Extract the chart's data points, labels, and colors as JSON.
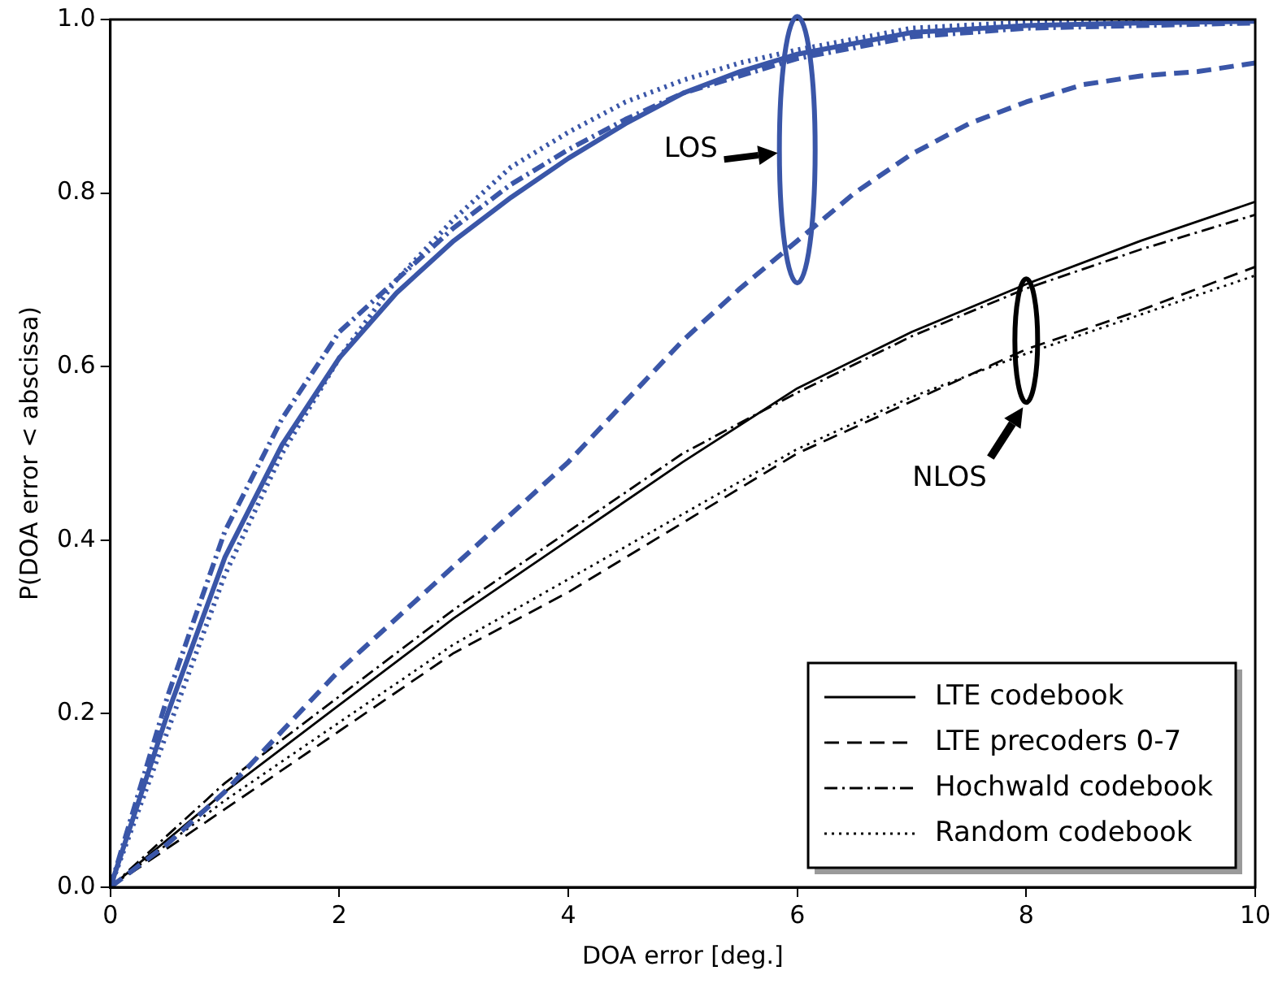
{
  "chart_data": {
    "type": "line",
    "xlabel": "DOA error [deg.]",
    "ylabel": "P(DOA error < abscissa)",
    "xlim": [
      0,
      10
    ],
    "xticks": [
      0,
      2,
      4,
      6,
      8,
      10
    ],
    "ylim": [
      0,
      1
    ],
    "yticks": [
      {
        "value": 0,
        "label": "0.0"
      },
      0.2,
      0.4,
      0.6,
      0.8,
      {
        "value": 1,
        "label": "1.0"
      }
    ],
    "grid": false,
    "legend": "bottom right",
    "marker": "none",
    "series": [
      {
        "color": "#3a56a8",
        "line_style": "solid",
        "x": [
          0,
          0.5,
          1,
          1.5,
          2,
          2.5,
          3,
          3.5,
          4,
          4.5,
          5,
          5.5,
          6,
          7,
          8,
          9,
          10
        ],
        "values": [
          0,
          0.2,
          0.38,
          0.51,
          0.61,
          0.685,
          0.745,
          0.795,
          0.84,
          0.88,
          0.915,
          0.94,
          0.96,
          0.985,
          0.993,
          0.996,
          0.998
        ]
      },
      {
        "color": "#3a56a8",
        "line_style": "dashed",
        "x": [
          0,
          0.5,
          1,
          1.5,
          2,
          2.5,
          3,
          3.5,
          4,
          4.5,
          5,
          5.5,
          6,
          6.5,
          7,
          7.5,
          8,
          8.5,
          9,
          9.5,
          10
        ],
        "values": [
          0,
          0.05,
          0.11,
          0.18,
          0.25,
          0.31,
          0.37,
          0.43,
          0.49,
          0.56,
          0.63,
          0.69,
          0.745,
          0.8,
          0.845,
          0.88,
          0.905,
          0.925,
          0.935,
          0.94,
          0.95
        ]
      },
      {
        "color": "#3a56a8",
        "line_style": "dashdot",
        "x": [
          0,
          0.5,
          1,
          1.5,
          2,
          2.5,
          3,
          3.5,
          4,
          4.5,
          5,
          6,
          7,
          8,
          10
        ],
        "values": [
          0,
          0.22,
          0.41,
          0.54,
          0.64,
          0.7,
          0.76,
          0.81,
          0.85,
          0.885,
          0.915,
          0.955,
          0.98,
          0.99,
          0.996
        ]
      },
      {
        "color": "#3a56a8",
        "line_style": "dotted",
        "x": [
          0,
          0.5,
          1,
          1.5,
          2,
          2.5,
          3,
          3.5,
          4,
          4.5,
          5,
          5.5,
          6,
          7,
          8,
          10
        ],
        "values": [
          0,
          0.18,
          0.36,
          0.5,
          0.61,
          0.7,
          0.77,
          0.83,
          0.87,
          0.905,
          0.93,
          0.95,
          0.965,
          0.99,
          0.997,
          1.0
        ]
      },
      {
        "name": "LTE codebook",
        "color": "#000000",
        "line_style": "solid",
        "x": [
          0,
          1,
          2,
          3,
          4,
          5,
          6,
          7,
          8,
          9,
          10
        ],
        "values": [
          0,
          0.11,
          0.21,
          0.31,
          0.4,
          0.49,
          0.575,
          0.64,
          0.695,
          0.745,
          0.79
        ]
      },
      {
        "name": "LTE precoders 0-7",
        "color": "#000000",
        "line_style": "dashed",
        "x": [
          0,
          1,
          2,
          3,
          4,
          5,
          6,
          7,
          8,
          9,
          10
        ],
        "values": [
          0,
          0.09,
          0.18,
          0.27,
          0.34,
          0.42,
          0.5,
          0.56,
          0.62,
          0.665,
          0.715
        ]
      },
      {
        "name": "Hochwald codebook",
        "color": "#000000",
        "line_style": "dashdot",
        "x": [
          0,
          1,
          2,
          3,
          4,
          5,
          6,
          7,
          8,
          9,
          10
        ],
        "values": [
          0,
          0.12,
          0.22,
          0.32,
          0.41,
          0.5,
          0.57,
          0.635,
          0.69,
          0.735,
          0.775
        ]
      },
      {
        "name": "Random codebook",
        "color": "#000000",
        "line_style": "dotted",
        "x": [
          0,
          1,
          2,
          3,
          4,
          5,
          6,
          7,
          8,
          9,
          10
        ],
        "values": [
          0,
          0.1,
          0.19,
          0.28,
          0.355,
          0.43,
          0.505,
          0.565,
          0.615,
          0.66,
          0.705
        ]
      }
    ],
    "annotations": [
      "LOS",
      "NLOS"
    ]
  }
}
